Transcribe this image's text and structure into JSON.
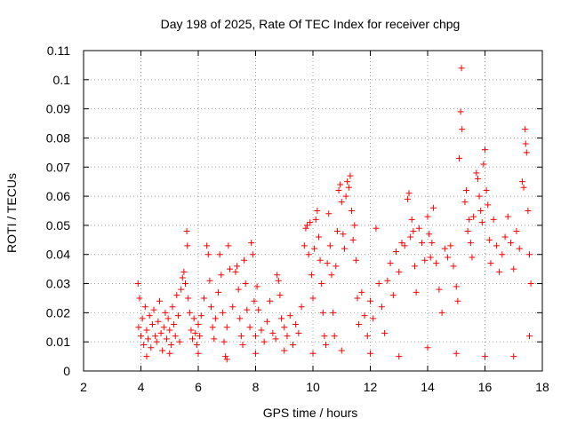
{
  "chart_data": {
    "type": "scatter",
    "title": "Day 198 of 2025, Rate Of TEC Index for receiver chpg",
    "xlabel": "GPS time / hours",
    "ylabel": "ROTI / TECUs",
    "xlim": [
      2,
      18
    ],
    "ylim": [
      0,
      0.11
    ],
    "x_ticks": [
      2,
      4,
      6,
      8,
      10,
      12,
      14,
      16,
      18
    ],
    "x_tick_labels": [
      "2",
      "4",
      "6",
      "8",
      "10",
      "12",
      "14",
      "16",
      "18"
    ],
    "y_ticks": [
      0,
      0.01,
      0.02,
      0.03,
      0.04,
      0.05,
      0.06,
      0.07,
      0.08,
      0.09,
      0.1,
      0.11
    ],
    "y_tick_labels": [
      "0",
      "0.01",
      "0.02",
      "0.03",
      "0.04",
      "0.05",
      "0.06",
      "0.07",
      "0.08",
      "0.09",
      "0.1",
      "0.11"
    ],
    "grid": true,
    "marker": "+",
    "color": "#ff0000",
    "series": [
      {
        "name": "ROTI",
        "points": [
          [
            3.9,
            0.03
          ],
          [
            3.95,
            0.025
          ],
          [
            4.0,
            0.012
          ],
          [
            4.05,
            0.018
          ],
          [
            4.1,
            0.009
          ],
          [
            4.15,
            0.022
          ],
          [
            4.2,
            0.014
          ],
          [
            4.25,
            0.011
          ],
          [
            4.3,
            0.019
          ],
          [
            4.35,
            0.008
          ],
          [
            4.4,
            0.016
          ],
          [
            4.45,
            0.021
          ],
          [
            4.5,
            0.012
          ],
          [
            4.55,
            0.01
          ],
          [
            4.6,
            0.017
          ],
          [
            4.65,
            0.024
          ],
          [
            4.7,
            0.013
          ],
          [
            4.75,
            0.007
          ],
          [
            4.8,
            0.015
          ],
          [
            4.85,
            0.02
          ],
          [
            4.9,
            0.011
          ],
          [
            4.95,
            0.018
          ],
          [
            5.0,
            0.014
          ],
          [
            5.05,
            0.009
          ],
          [
            5.1,
            0.022
          ],
          [
            5.15,
            0.016
          ],
          [
            5.2,
            0.012
          ],
          [
            5.25,
            0.026
          ],
          [
            5.3,
            0.019
          ],
          [
            5.35,
            0.01
          ],
          [
            5.4,
            0.028
          ],
          [
            5.45,
            0.032
          ],
          [
            5.5,
            0.034
          ],
          [
            5.55,
            0.03
          ],
          [
            5.6,
            0.048
          ],
          [
            5.62,
            0.043
          ],
          [
            5.65,
            0.025
          ],
          [
            5.7,
            0.02
          ],
          [
            5.75,
            0.014
          ],
          [
            5.8,
            0.011
          ],
          [
            5.85,
            0.018
          ],
          [
            5.9,
            0.013
          ],
          [
            5.95,
            0.009
          ],
          [
            6.0,
            0.016
          ],
          [
            6.05,
            0.012
          ],
          [
            6.1,
            0.019
          ],
          [
            6.2,
            0.025
          ],
          [
            6.3,
            0.043
          ],
          [
            6.35,
            0.04
          ],
          [
            6.4,
            0.031
          ],
          [
            6.45,
            0.022
          ],
          [
            6.5,
            0.015
          ],
          [
            6.55,
            0.011
          ],
          [
            6.6,
            0.018
          ],
          [
            6.7,
            0.027
          ],
          [
            6.75,
            0.04
          ],
          [
            6.8,
            0.033
          ],
          [
            6.85,
            0.02
          ],
          [
            6.9,
            0.01
          ],
          [
            6.95,
            0.005
          ],
          [
            7.0,
            0.015
          ],
          [
            7.05,
            0.043
          ],
          [
            7.1,
            0.035
          ],
          [
            7.2,
            0.022
          ],
          [
            7.3,
            0.034
          ],
          [
            7.35,
            0.036
          ],
          [
            7.4,
            0.028
          ],
          [
            7.45,
            0.018
          ],
          [
            7.5,
            0.012
          ],
          [
            7.55,
            0.009
          ],
          [
            7.6,
            0.038
          ],
          [
            7.65,
            0.03
          ],
          [
            7.7,
            0.021
          ],
          [
            7.8,
            0.015
          ],
          [
            7.85,
            0.044
          ],
          [
            7.9,
            0.04
          ],
          [
            7.95,
            0.024
          ],
          [
            8.0,
            0.012
          ],
          [
            8.05,
            0.029
          ],
          [
            8.1,
            0.021
          ],
          [
            8.2,
            0.014
          ],
          [
            8.3,
            0.01
          ],
          [
            8.4,
            0.017
          ],
          [
            8.5,
            0.024
          ],
          [
            8.6,
            0.013
          ],
          [
            8.7,
            0.011
          ],
          [
            8.75,
            0.033
          ],
          [
            8.8,
            0.031
          ],
          [
            8.85,
            0.026
          ],
          [
            8.9,
            0.018
          ],
          [
            9.0,
            0.015
          ],
          [
            9.1,
            0.012
          ],
          [
            9.2,
            0.019
          ],
          [
            9.3,
            0.009
          ],
          [
            9.4,
            0.016
          ],
          [
            9.5,
            0.013
          ],
          [
            9.6,
            0.022
          ],
          [
            9.7,
            0.043
          ],
          [
            9.75,
            0.049
          ],
          [
            9.8,
            0.05
          ],
          [
            9.85,
            0.04
          ],
          [
            9.9,
            0.051
          ],
          [
            9.95,
            0.033
          ],
          [
            10.0,
            0.025
          ],
          [
            10.05,
            0.042
          ],
          [
            10.1,
            0.052
          ],
          [
            10.15,
            0.055
          ],
          [
            10.2,
            0.046
          ],
          [
            10.25,
            0.038
          ],
          [
            10.3,
            0.03
          ],
          [
            10.35,
            0.02
          ],
          [
            10.4,
            0.012
          ],
          [
            10.45,
            0.009
          ],
          [
            10.5,
            0.037
          ],
          [
            10.55,
            0.054
          ],
          [
            10.6,
            0.043
          ],
          [
            10.65,
            0.033
          ],
          [
            10.7,
            0.02
          ],
          [
            10.75,
            0.012
          ],
          [
            10.8,
            0.036
          ],
          [
            10.85,
            0.048
          ],
          [
            10.9,
            0.062
          ],
          [
            10.95,
            0.064
          ],
          [
            11.0,
            0.058
          ],
          [
            11.05,
            0.047
          ],
          [
            11.1,
            0.042
          ],
          [
            11.15,
            0.06
          ],
          [
            11.2,
            0.065
          ],
          [
            11.25,
            0.063
          ],
          [
            11.3,
            0.067
          ],
          [
            11.35,
            0.055
          ],
          [
            11.4,
            0.045
          ],
          [
            11.45,
            0.05
          ],
          [
            11.5,
            0.038
          ],
          [
            11.55,
            0.025
          ],
          [
            11.6,
            0.016
          ],
          [
            11.7,
            0.027
          ],
          [
            11.8,
            0.019
          ],
          [
            11.9,
            0.012
          ],
          [
            12.0,
            0.024
          ],
          [
            12.1,
            0.018
          ],
          [
            12.2,
            0.049
          ],
          [
            12.3,
            0.03
          ],
          [
            12.4,
            0.022
          ],
          [
            12.5,
            0.013
          ],
          [
            12.6,
            0.031
          ],
          [
            12.7,
            0.037
          ],
          [
            12.8,
            0.026
          ],
          [
            12.9,
            0.041
          ],
          [
            13.0,
            0.034
          ],
          [
            13.1,
            0.044
          ],
          [
            13.2,
            0.043
          ],
          [
            13.3,
            0.059
          ],
          [
            13.35,
            0.061
          ],
          [
            13.4,
            0.046
          ],
          [
            13.45,
            0.052
          ],
          [
            13.5,
            0.048
          ],
          [
            13.55,
            0.036
          ],
          [
            13.6,
            0.027
          ],
          [
            13.7,
            0.049
          ],
          [
            13.8,
            0.044
          ],
          [
            13.9,
            0.038
          ],
          [
            14.0,
            0.053
          ],
          [
            14.05,
            0.047
          ],
          [
            14.1,
            0.039
          ],
          [
            14.15,
            0.044
          ],
          [
            14.2,
            0.056
          ],
          [
            14.3,
            0.037
          ],
          [
            14.4,
            0.028
          ],
          [
            14.5,
            0.02
          ],
          [
            14.6,
            0.042
          ],
          [
            14.7,
            0.039
          ],
          [
            14.8,
            0.043
          ],
          [
            14.9,
            0.036
          ],
          [
            15.0,
            0.029
          ],
          [
            15.05,
            0.024
          ],
          [
            15.1,
            0.073
          ],
          [
            15.15,
            0.089
          ],
          [
            15.18,
            0.104
          ],
          [
            15.2,
            0.083
          ],
          [
            15.3,
            0.058
          ],
          [
            15.35,
            0.062
          ],
          [
            15.4,
            0.048
          ],
          [
            15.45,
            0.052
          ],
          [
            15.5,
            0.044
          ],
          [
            15.55,
            0.039
          ],
          [
            15.6,
            0.053
          ],
          [
            15.7,
            0.068
          ],
          [
            15.75,
            0.066
          ],
          [
            15.8,
            0.06
          ],
          [
            15.85,
            0.055
          ],
          [
            15.9,
            0.051
          ],
          [
            15.95,
            0.071
          ],
          [
            16.0,
            0.076
          ],
          [
            16.05,
            0.062
          ],
          [
            16.1,
            0.057
          ],
          [
            16.15,
            0.045
          ],
          [
            16.2,
            0.037
          ],
          [
            16.3,
            0.052
          ],
          [
            16.4,
            0.043
          ],
          [
            16.5,
            0.034
          ],
          [
            16.6,
            0.04
          ],
          [
            16.7,
            0.046
          ],
          [
            16.8,
            0.053
          ],
          [
            16.9,
            0.044
          ],
          [
            17.0,
            0.035
          ],
          [
            17.1,
            0.048
          ],
          [
            17.2,
            0.042
          ],
          [
            17.3,
            0.065
          ],
          [
            17.35,
            0.063
          ],
          [
            17.4,
            0.083
          ],
          [
            17.42,
            0.078
          ],
          [
            17.45,
            0.075
          ],
          [
            17.5,
            0.055
          ],
          [
            17.55,
            0.04
          ],
          [
            17.6,
            0.03
          ],
          [
            4.2,
            0.005
          ],
          [
            5.0,
            0.006
          ],
          [
            6.0,
            0.006
          ],
          [
            7.0,
            0.004
          ],
          [
            8.0,
            0.006
          ],
          [
            9.0,
            0.007
          ],
          [
            10.0,
            0.006
          ],
          [
            11.0,
            0.007
          ],
          [
            12.0,
            0.006
          ],
          [
            13.0,
            0.005
          ],
          [
            14.0,
            0.008
          ],
          [
            15.0,
            0.006
          ],
          [
            16.0,
            0.005
          ],
          [
            17.0,
            0.005
          ],
          [
            17.55,
            0.012
          ],
          [
            3.92,
            0.015
          ]
        ]
      }
    ]
  }
}
